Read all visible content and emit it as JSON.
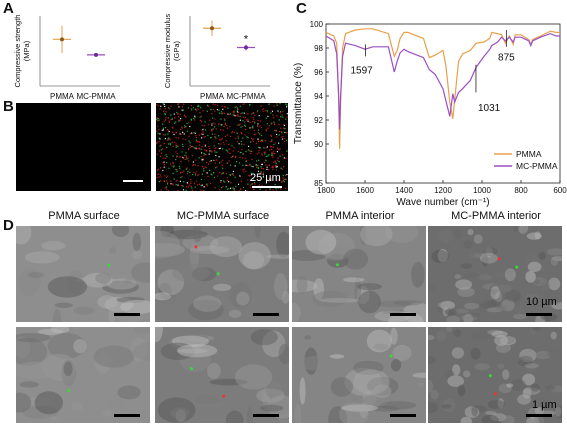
{
  "panels": {
    "a": {
      "letter": "A"
    },
    "b": {
      "letter": "B",
      "scale_bar": "25 µm"
    },
    "c": {
      "letter": "C"
    },
    "d": {
      "letter": "D",
      "captions": [
        "PMMA surface",
        "MC-PMMA surface",
        "PMMA interior",
        "MC-PMMA interior"
      ],
      "scale_top": "10 µm",
      "scale_bottom": "1 µm"
    }
  },
  "chart_data": [
    {
      "type": "scatter",
      "ylabel": "Compressive strength (MPa)",
      "categories": [
        "PMMA",
        "MC-PMMA"
      ],
      "series": [
        {
          "values": [
            1.2,
            0.8
          ],
          "error": [
            0.35,
            0.02
          ],
          "colors": [
            "#e8a04a",
            "#9b4fc4"
          ]
        }
      ],
      "annotations": [],
      "colors": {
        "pmma": "#e8a04a",
        "mc": "#9b4fc4"
      }
    },
    {
      "type": "scatter",
      "ylabel": "Compressive modulus (GPa)",
      "categories": [
        "PMMA",
        "MC-PMMA"
      ],
      "series": [
        {
          "values": [
            1.65,
            1.1
          ],
          "error": [
            0.22,
            0.08
          ],
          "colors": [
            "#e8a04a",
            "#9b4fc4"
          ]
        }
      ],
      "annotations": [
        {
          "text": "*",
          "category": "MC-PMMA"
        }
      ]
    },
    {
      "type": "line",
      "xlabel": "Wave number (cm⁻¹)",
      "ylabel": "Transmittance (%)",
      "xlim": [
        1800,
        600
      ],
      "ylim": [
        85,
        100
      ],
      "xticks": [
        1800,
        1600,
        1400,
        1200,
        1000,
        800,
        600
      ],
      "yticks": [
        85,
        90,
        92,
        94,
        96,
        98,
        100
      ],
      "annotations": [
        "1597",
        "1031",
        "875"
      ],
      "series": [
        {
          "name": "PMMA",
          "color": "#e8a04a",
          "x": [
            1800,
            1760,
            1745,
            1735,
            1730,
            1725,
            1715,
            1700,
            1650,
            1600,
            1560,
            1480,
            1450,
            1435,
            1420,
            1400,
            1380,
            1300,
            1270,
            1240,
            1200,
            1185,
            1165,
            1150,
            1140,
            1120,
            1100,
            1060,
            1030,
            990,
            960,
            950,
            920,
            900,
            880,
            860,
            845,
            840,
            830,
            800,
            760,
            750,
            740,
            700,
            650,
            620,
            600
          ],
          "y": [
            99.3,
            99.0,
            98.4,
            93.5,
            89.4,
            93.5,
            98.0,
            99.2,
            99.5,
            99.6,
            99.6,
            99.2,
            97.3,
            97.8,
            98.8,
            99.3,
            99.3,
            98.8,
            97.2,
            97.4,
            97.8,
            96.5,
            93.5,
            92.1,
            93.7,
            96.9,
            97.5,
            97.8,
            98.4,
            98.5,
            98.8,
            99.3,
            99.2,
            99.1,
            98.4,
            99.0,
            98.5,
            98.3,
            99.1,
            99.1,
            98.7,
            98.3,
            98.7,
            99.0,
            99.4,
            99.3,
            99.3
          ]
        },
        {
          "name": "MC-PMMA",
          "color": "#9b4fc4",
          "x": [
            1800,
            1760,
            1745,
            1735,
            1730,
            1725,
            1715,
            1700,
            1650,
            1600,
            1560,
            1480,
            1450,
            1435,
            1420,
            1400,
            1380,
            1300,
            1270,
            1240,
            1200,
            1185,
            1165,
            1150,
            1140,
            1120,
            1100,
            1060,
            1030,
            990,
            960,
            950,
            920,
            900,
            880,
            860,
            845,
            840,
            830,
            800,
            760,
            750,
            740,
            700,
            650,
            620,
            600
          ],
          "y": [
            99.0,
            98.6,
            97.5,
            94.0,
            91.2,
            94.0,
            97.3,
            98.4,
            98.2,
            97.9,
            98.1,
            98.1,
            96.0,
            96.9,
            97.6,
            97.9,
            97.7,
            97.2,
            96.2,
            95.8,
            94.6,
            93.6,
            92.3,
            94.2,
            93.5,
            94.3,
            94.6,
            95.3,
            96.4,
            97.3,
            97.9,
            98.2,
            98.5,
            98.9,
            98.6,
            98.9,
            98.6,
            98.5,
            98.9,
            98.9,
            98.6,
            98.2,
            98.6,
            98.9,
            99.2,
            99.0,
            99.0
          ]
        }
      ]
    }
  ]
}
